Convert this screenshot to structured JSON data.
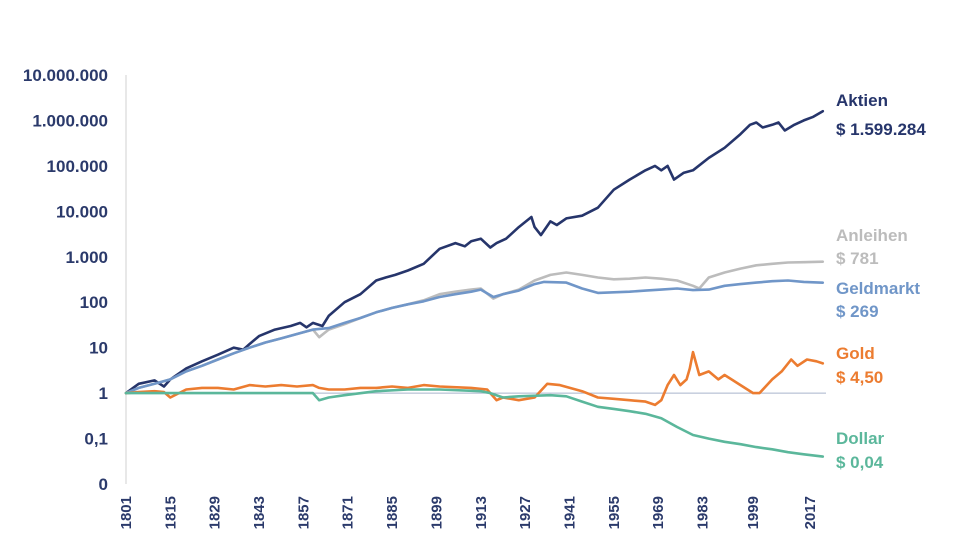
{
  "chart_data": {
    "type": "line",
    "title": "",
    "xlabel": "",
    "ylabel": "",
    "yscale": "log",
    "ylim": [
      0.01,
      10000000
    ],
    "xlim": [
      1801,
      2022
    ],
    "grid": false,
    "reference_line": 1,
    "ytick_labels": [
      {
        "value": 10000000,
        "label": "10.000.000"
      },
      {
        "value": 1000000,
        "label": "1.000.000"
      },
      {
        "value": 100000,
        "label": "100.000"
      },
      {
        "value": 10000,
        "label": "10.000"
      },
      {
        "value": 1000,
        "label": "1.000"
      },
      {
        "value": 100,
        "label": "100"
      },
      {
        "value": 10,
        "label": "10"
      },
      {
        "value": 1,
        "label": "1"
      },
      {
        "value": 0.1,
        "label": "0,1"
      },
      {
        "value": 0.01,
        "label": "0"
      }
    ],
    "xtick_labels": [
      "1801",
      "1815",
      "1829",
      "1843",
      "1857",
      "1871",
      "1885",
      "1899",
      "1913",
      "1927",
      "1941",
      "1955",
      "1969",
      "1983",
      "1999",
      "2017"
    ],
    "xtick_values": [
      1801,
      1815,
      1829,
      1843,
      1857,
      1871,
      1885,
      1899,
      1913,
      1927,
      1941,
      1955,
      1969,
      1983,
      1999,
      2017
    ],
    "series": [
      {
        "name": "Aktien",
        "final_label": "$ 1.599.284",
        "color": "#26356b",
        "x": [
          1801,
          1805,
          1810,
          1813,
          1815,
          1820,
          1825,
          1830,
          1835,
          1838,
          1840,
          1843,
          1848,
          1853,
          1856,
          1858,
          1860,
          1863,
          1865,
          1870,
          1875,
          1880,
          1883,
          1886,
          1890,
          1895,
          1900,
          1905,
          1908,
          1910,
          1913,
          1916,
          1918,
          1921,
          1925,
          1929,
          1930,
          1932,
          1935,
          1937,
          1940,
          1945,
          1950,
          1955,
          1960,
          1965,
          1968,
          1970,
          1972,
          1974,
          1977,
          1980,
          1985,
          1990,
          1995,
          1998,
          2000,
          2002,
          2005,
          2007,
          2009,
          2012,
          2015,
          2018,
          2021
        ],
        "y": [
          1,
          1.6,
          1.9,
          1.4,
          2,
          3.5,
          5,
          7,
          10,
          9,
          12,
          18,
          25,
          30,
          35,
          28,
          35,
          30,
          50,
          100,
          150,
          300,
          350,
          400,
          500,
          700,
          1500,
          2000,
          1700,
          2200,
          2500,
          1600,
          2000,
          2500,
          4500,
          7500,
          4500,
          3000,
          6000,
          5000,
          7000,
          8000,
          12000,
          30000,
          50000,
          80000,
          100000,
          80000,
          100000,
          50000,
          70000,
          80000,
          150000,
          250000,
          500000,
          800000,
          900000,
          700000,
          800000,
          900000,
          600000,
          800000,
          1000000,
          1200000,
          1600000
        ]
      },
      {
        "name": "Anleihen",
        "final_label": "$ 781",
        "color": "#bcbcbc",
        "x": [
          1801,
          1805,
          1810,
          1815,
          1820,
          1825,
          1830,
          1835,
          1840,
          1845,
          1850,
          1855,
          1860,
          1862,
          1865,
          1870,
          1875,
          1880,
          1885,
          1890,
          1895,
          1900,
          1905,
          1910,
          1913,
          1917,
          1920,
          1925,
          1930,
          1935,
          1940,
          1945,
          1950,
          1955,
          1960,
          1965,
          1970,
          1975,
          1980,
          1982,
          1985,
          1990,
          1995,
          2000,
          2005,
          2010,
          2015,
          2021
        ],
        "y": [
          1,
          1.3,
          1.6,
          2,
          3,
          4,
          5.5,
          7.5,
          10,
          13,
          16,
          20,
          25,
          17,
          25,
          33,
          45,
          60,
          75,
          90,
          110,
          150,
          170,
          190,
          200,
          120,
          150,
          190,
          300,
          400,
          450,
          400,
          350,
          320,
          330,
          350,
          330,
          300,
          230,
          200,
          350,
          450,
          550,
          650,
          700,
          750,
          760,
          780
        ]
      },
      {
        "name": "Geldmarkt",
        "final_label": "$ 269",
        "color": "#7096c8",
        "x": [
          1801,
          1805,
          1810,
          1815,
          1820,
          1825,
          1830,
          1835,
          1840,
          1845,
          1850,
          1855,
          1860,
          1865,
          1870,
          1875,
          1880,
          1885,
          1890,
          1895,
          1900,
          1905,
          1910,
          1913,
          1917,
          1920,
          1925,
          1930,
          1933,
          1940,
          1945,
          1950,
          1955,
          1960,
          1965,
          1970,
          1975,
          1980,
          1985,
          1990,
          1995,
          2000,
          2005,
          2010,
          2015,
          2021
        ],
        "y": [
          1,
          1.3,
          1.6,
          2,
          3,
          4,
          5.5,
          7.5,
          10,
          13,
          16,
          20,
          25,
          27,
          35,
          45,
          60,
          75,
          90,
          105,
          130,
          150,
          170,
          190,
          130,
          150,
          180,
          250,
          280,
          270,
          200,
          160,
          165,
          170,
          180,
          190,
          200,
          185,
          190,
          230,
          250,
          270,
          290,
          300,
          280,
          269
        ]
      },
      {
        "name": "Gold",
        "final_label": "$ 4,50",
        "color": "#ec7c30",
        "x": [
          1801,
          1805,
          1810,
          1813,
          1815,
          1820,
          1825,
          1830,
          1835,
          1840,
          1845,
          1850,
          1855,
          1860,
          1862,
          1865,
          1870,
          1875,
          1880,
          1885,
          1890,
          1895,
          1900,
          1910,
          1915,
          1918,
          1920,
          1925,
          1930,
          1934,
          1938,
          1945,
          1950,
          1955,
          1960,
          1965,
          1968,
          1970,
          1972,
          1974,
          1976,
          1978,
          1979,
          1980,
          1982,
          1985,
          1988,
          1990,
          1995,
          1999,
          2001,
          2005,
          2008,
          2011,
          2013,
          2016,
          2019,
          2021
        ],
        "y": [
          1,
          1.05,
          1.1,
          1.05,
          0.8,
          1.2,
          1.3,
          1.3,
          1.2,
          1.5,
          1.4,
          1.5,
          1.4,
          1.5,
          1.3,
          1.2,
          1.2,
          1.3,
          1.3,
          1.4,
          1.3,
          1.5,
          1.4,
          1.3,
          1.2,
          0.7,
          0.8,
          0.7,
          0.8,
          1.6,
          1.5,
          1.1,
          0.8,
          0.75,
          0.7,
          0.65,
          0.55,
          0.7,
          1.5,
          2.5,
          1.5,
          2,
          3.5,
          8,
          2.5,
          3,
          2,
          2.5,
          1.5,
          1,
          1,
          2,
          3,
          5.5,
          4,
          5.5,
          5,
          4.5
        ]
      },
      {
        "name": "Dollar",
        "final_label": "$ 0,04",
        "color": "#5bb79b",
        "x": [
          1801,
          1860,
          1862,
          1865,
          1870,
          1880,
          1890,
          1900,
          1913,
          1916,
          1920,
          1925,
          1935,
          1940,
          1945,
          1950,
          1955,
          1960,
          1965,
          1970,
          1975,
          1980,
          1985,
          1990,
          1995,
          2000,
          2005,
          2010,
          2015,
          2021
        ],
        "y": [
          1,
          1,
          0.7,
          0.8,
          0.9,
          1.1,
          1.2,
          1.2,
          1.1,
          1,
          0.8,
          0.85,
          0.9,
          0.85,
          0.65,
          0.5,
          0.45,
          0.4,
          0.35,
          0.28,
          0.18,
          0.12,
          0.1,
          0.085,
          0.075,
          0.065,
          0.058,
          0.05,
          0.045,
          0.04
        ]
      }
    ]
  }
}
